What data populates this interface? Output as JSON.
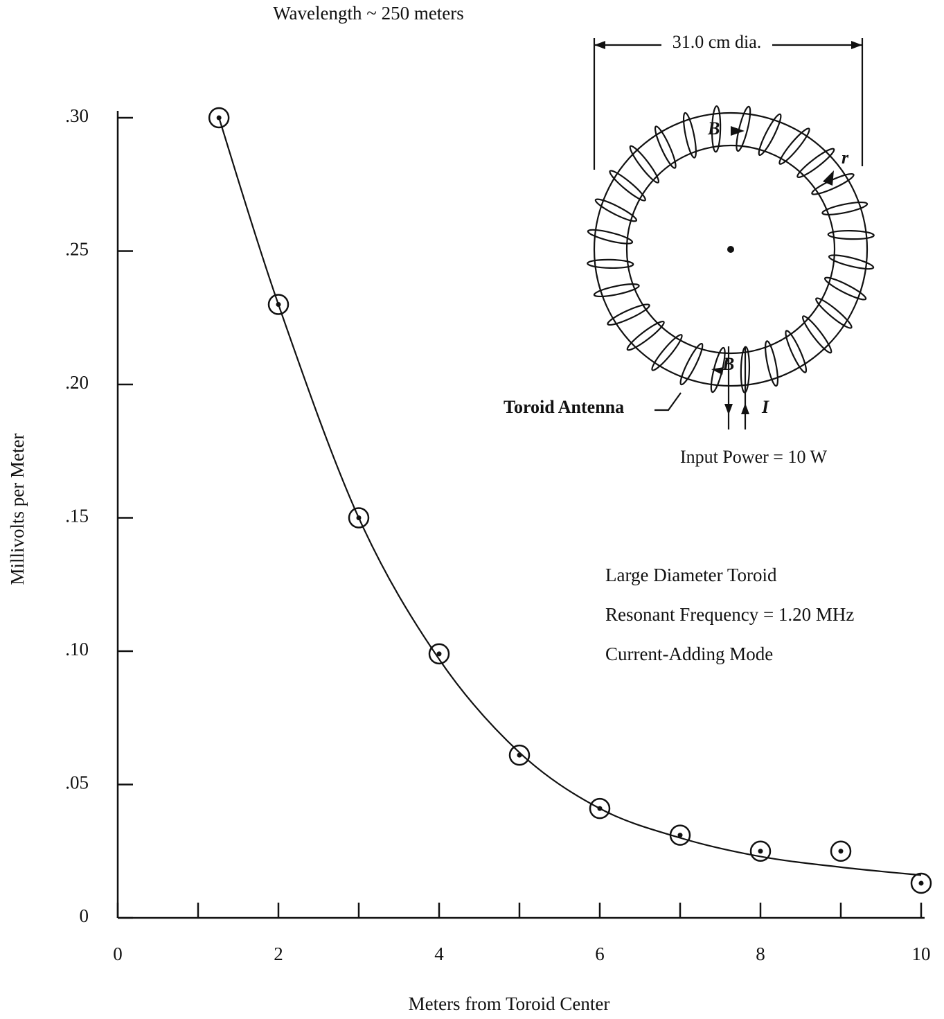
{
  "chart_data": {
    "type": "scatter",
    "title": "Wavelength ~ 250 meters",
    "x_label": "Meters from Toroid Center",
    "y_label": "Millivolts per Meter",
    "xlim": [
      0,
      10
    ],
    "ylim": [
      0,
      0.3
    ],
    "xticks": [
      0,
      2,
      4,
      6,
      8,
      10
    ],
    "xminorticks": [
      1,
      3,
      5,
      7,
      9
    ],
    "yticks": [
      0,
      {
        "value": 0.05,
        "label": ".05"
      },
      {
        "value": 0.1,
        "label": ".10"
      },
      {
        "value": 0.15,
        "label": ".15"
      },
      {
        "value": 0.2,
        "label": ".20"
      },
      {
        "value": 0.25,
        "label": ".25"
      },
      {
        "value": 0.3,
        "label": ".30"
      }
    ],
    "color": "#111111",
    "series": [
      {
        "x": [
          1.26,
          2,
          3,
          4,
          5,
          6,
          7,
          8,
          9,
          10
        ],
        "values": [
          0.3,
          0.23,
          0.15,
          0.099,
          0.061,
          0.041,
          0.031,
          0.025,
          0.025,
          0.013
        ],
        "marker": "circle"
      },
      {
        "x": [
          1.26,
          2,
          3,
          4,
          5,
          6,
          7,
          8,
          9,
          10
        ],
        "values": [
          0.3,
          0.23,
          0.15,
          0.097,
          0.062,
          0.041,
          0.03,
          0.023,
          0.019,
          0.016
        ],
        "marker": "line"
      }
    ],
    "annotations": [
      "31.0 cm dia.",
      "B",
      "r",
      "B",
      "Toroid Antenna",
      "I",
      "Input Power = 10 W",
      "Large Diameter Toroid",
      "Resonant Frequency = 1.20 MHz",
      "Current-Adding Mode"
    ]
  }
}
